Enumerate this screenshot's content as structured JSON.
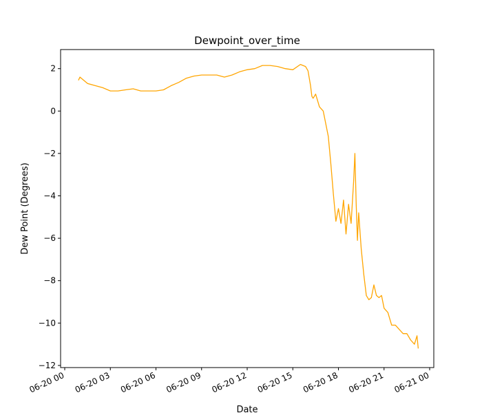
{
  "chart_data": {
    "type": "line",
    "title": "Dewpoint_over_time",
    "xlabel": "Date",
    "ylabel": "Dew Point (Degrees)",
    "xlim": [
      "06-20 00:00",
      "06-21 00:00"
    ],
    "ylim": [
      -12.1,
      2.9
    ],
    "x_ticks": [
      "06-20 00",
      "06-20 03",
      "06-20 06",
      "06-20 09",
      "06-20 12",
      "06-20 15",
      "06-20 18",
      "06-20 21",
      "06-21 00"
    ],
    "y_ticks": [
      2,
      0,
      -2,
      -4,
      -6,
      -8,
      -10,
      -12
    ],
    "grid": false,
    "legend": "none",
    "series": [
      {
        "color": "#ffa500",
        "x": [
          "06-20 00:54",
          "06-20 01:00",
          "06-20 01:30",
          "06-20 02:00",
          "06-20 02:30",
          "06-20 03:00",
          "06-20 03:30",
          "06-20 04:00",
          "06-20 04:30",
          "06-20 05:00",
          "06-20 05:30",
          "06-20 06:00",
          "06-20 06:30",
          "06-20 07:00",
          "06-20 07:30",
          "06-20 08:00",
          "06-20 08:30",
          "06-20 09:00",
          "06-20 09:30",
          "06-20 10:00",
          "06-20 10:30",
          "06-20 11:00",
          "06-20 11:30",
          "06-20 12:00",
          "06-20 12:30",
          "06-20 13:00",
          "06-20 13:30",
          "06-20 14:00",
          "06-20 14:30",
          "06-20 15:00",
          "06-20 15:30",
          "06-20 15:50",
          "06-20 16:00",
          "06-20 16:10",
          "06-20 16:15",
          "06-20 16:20",
          "06-20 16:30",
          "06-20 16:45",
          "06-20 17:00",
          "06-20 17:10",
          "06-20 17:20",
          "06-20 17:30",
          "06-20 17:40",
          "06-20 17:50",
          "06-20 18:00",
          "06-20 18:10",
          "06-20 18:20",
          "06-20 18:30",
          "06-20 18:40",
          "06-20 18:50",
          "06-20 19:00",
          "06-20 19:05",
          "06-20 19:10",
          "06-20 19:15",
          "06-20 19:20",
          "06-20 19:30",
          "06-20 19:40",
          "06-20 19:50",
          "06-20 20:00",
          "06-20 20:10",
          "06-20 20:20",
          "06-20 20:30",
          "06-20 20:40",
          "06-20 20:50",
          "06-20 21:00",
          "06-20 21:15",
          "06-20 21:30",
          "06-20 21:45",
          "06-20 22:00",
          "06-20 22:15",
          "06-20 22:30",
          "06-20 22:45",
          "06-20 23:00",
          "06-20 23:10",
          "06-20 23:15"
        ],
        "y": [
          1.45,
          1.6,
          1.3,
          1.2,
          1.1,
          0.95,
          0.95,
          1.0,
          1.05,
          0.95,
          0.95,
          0.95,
          1.0,
          1.2,
          1.35,
          1.55,
          1.65,
          1.7,
          1.7,
          1.7,
          1.6,
          1.7,
          1.85,
          1.95,
          2.0,
          2.15,
          2.15,
          2.1,
          2.0,
          1.95,
          2.2,
          2.1,
          1.9,
          1.2,
          0.7,
          0.6,
          0.8,
          0.2,
          0.0,
          -0.6,
          -1.2,
          -2.5,
          -3.9,
          -5.2,
          -4.6,
          -5.3,
          -4.2,
          -5.8,
          -4.4,
          -5.3,
          -3.3,
          -2.0,
          -4.4,
          -6.1,
          -4.8,
          -6.5,
          -7.7,
          -8.7,
          -8.9,
          -8.8,
          -8.2,
          -8.7,
          -8.8,
          -8.7,
          -9.3,
          -9.5,
          -10.1,
          -10.1,
          -10.3,
          -10.5,
          -10.5,
          -10.8,
          -11.0,
          -10.6,
          -11.2
        ]
      }
    ]
  }
}
